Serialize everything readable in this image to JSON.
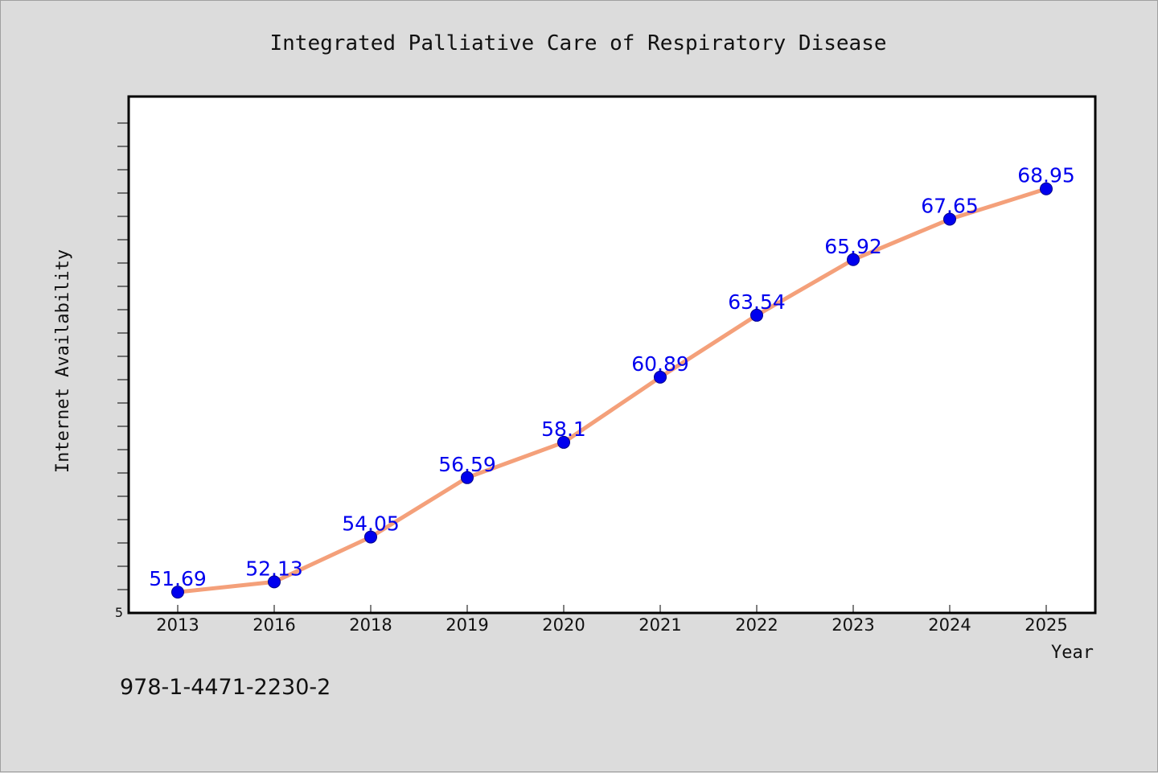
{
  "chart_data": {
    "type": "line",
    "title": "Integrated Palliative Care of Respiratory Disease",
    "xlabel": "Year",
    "ylabel": "Internet Availability",
    "categories": [
      "2013",
      "2016",
      "2018",
      "2019",
      "2020",
      "2021",
      "2022",
      "2023",
      "2024",
      "2025"
    ],
    "series": [
      {
        "values": [
          51.69,
          52.13,
          54.05,
          56.59,
          58.1,
          60.89,
          63.54,
          65.92,
          67.65,
          68.95
        ],
        "labels": [
          "51.69",
          "52.13",
          "54.05",
          "56.59",
          "58.1",
          "60.89",
          "63.54",
          "65.92",
          "67.65",
          "68.95"
        ]
      }
    ],
    "ylim": [
      50.8,
      72.9
    ],
    "y_tick_label": "5",
    "grid": false,
    "line_color": "#f4a07a",
    "marker_color": "#0000ee"
  },
  "footer": {
    "isbn": "978-1-4471-2230-2"
  }
}
